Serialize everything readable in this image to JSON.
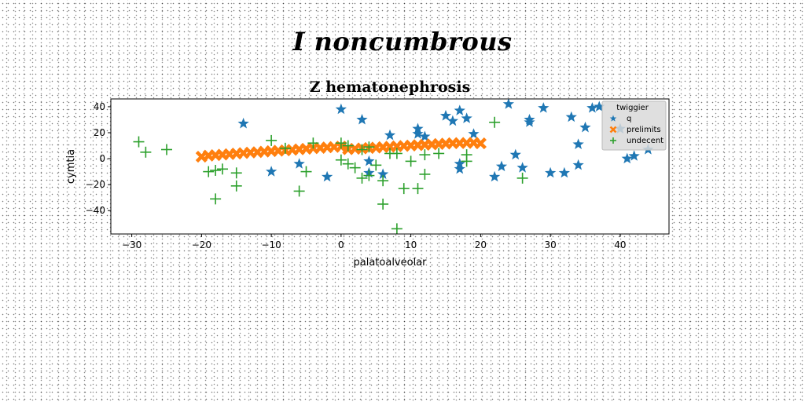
{
  "figure": {
    "suptitle": "I noncumbrous"
  },
  "chart_data": {
    "type": "scatter",
    "title": "Z hematonephrosis",
    "xlabel": "palatoalveolar",
    "ylabel": "cymtia",
    "xlim": [
      -33,
      47
    ],
    "ylim": [
      -58,
      46
    ],
    "xticks": [
      -30,
      -20,
      -10,
      0,
      10,
      20,
      30,
      40
    ],
    "yticks": [
      -40,
      -20,
      0,
      20,
      40
    ],
    "xtick_labels": [
      "−30",
      "−20",
      "−10",
      "0",
      "10",
      "20",
      "30",
      "40"
    ],
    "ytick_labels": [
      "−40",
      "−20",
      "0",
      "20",
      "40"
    ],
    "grid": false,
    "legend": {
      "title": "twiggier",
      "placement": "top-right"
    },
    "series": [
      {
        "name": "q",
        "marker": "star",
        "color": "#1f77b4",
        "points": [
          [
            -14,
            27
          ],
          [
            -10,
            -10
          ],
          [
            -6,
            -4
          ],
          [
            -2,
            -14
          ],
          [
            0,
            38
          ],
          [
            3,
            30
          ],
          [
            4,
            -2
          ],
          [
            4,
            -11
          ],
          [
            6,
            -12
          ],
          [
            7,
            18
          ],
          [
            11,
            19
          ],
          [
            11,
            23
          ],
          [
            12,
            17
          ],
          [
            15,
            33
          ],
          [
            16,
            29
          ],
          [
            17,
            37
          ],
          [
            18,
            31
          ],
          [
            17,
            -4
          ],
          [
            17,
            -8
          ],
          [
            19,
            19
          ],
          [
            22,
            -14
          ],
          [
            23,
            -6
          ],
          [
            24,
            42
          ],
          [
            25,
            3
          ],
          [
            26,
            -7
          ],
          [
            27,
            30
          ],
          [
            27,
            28
          ],
          [
            29,
            39
          ],
          [
            30,
            -11
          ],
          [
            32,
            -11
          ],
          [
            33,
            32
          ],
          [
            34,
            -5
          ],
          [
            34,
            11
          ],
          [
            35,
            24
          ],
          [
            36,
            39
          ],
          [
            37,
            40
          ],
          [
            40,
            23
          ],
          [
            41,
            0
          ],
          [
            42,
            2
          ],
          [
            44,
            7
          ]
        ]
      },
      {
        "name": "prelimits",
        "marker": "x",
        "color": "#ff7f0e",
        "points": [
          [
            -20,
            1.5
          ],
          [
            -19,
            2.3
          ],
          [
            -18,
            2.7
          ],
          [
            -17,
            3.1
          ],
          [
            -16,
            3.5
          ],
          [
            -15,
            3.9
          ],
          [
            -14,
            4.3
          ],
          [
            -13,
            4.7
          ],
          [
            -12,
            5.0
          ],
          [
            -11,
            5.4
          ],
          [
            -10,
            5.8
          ],
          [
            -9,
            6.1
          ],
          [
            -8,
            6.4
          ],
          [
            -7,
            6.8
          ],
          [
            -6,
            7.2
          ],
          [
            -5,
            7.6
          ],
          [
            -4,
            8.0
          ],
          [
            -3,
            8.3
          ],
          [
            -2,
            8.7
          ],
          [
            -1,
            9.0
          ],
          [
            0,
            9.3
          ],
          [
            1,
            7.3
          ],
          [
            2,
            7.6
          ],
          [
            3,
            7.9
          ],
          [
            4,
            8.2
          ],
          [
            5,
            8.5
          ],
          [
            6,
            8.9
          ],
          [
            7,
            9.2
          ],
          [
            8,
            9.5
          ],
          [
            9,
            9.8
          ],
          [
            10,
            10.1
          ],
          [
            11,
            10.4
          ],
          [
            12,
            10.7
          ],
          [
            13,
            11.0
          ],
          [
            14,
            11.3
          ],
          [
            15,
            11.6
          ],
          [
            16,
            11.9
          ],
          [
            17,
            12.0
          ],
          [
            18,
            12.1
          ],
          [
            19,
            12.2
          ],
          [
            20,
            11.8
          ]
        ]
      },
      {
        "name": "undecent",
        "marker": "plus",
        "color": "#2ca02c",
        "points": [
          [
            -29,
            13
          ],
          [
            -28,
            5
          ],
          [
            -25,
            7
          ],
          [
            -19,
            -10
          ],
          [
            -18,
            -9
          ],
          [
            -17,
            -8
          ],
          [
            -18,
            -31
          ],
          [
            -15,
            -11
          ],
          [
            -15,
            -21
          ],
          [
            -10,
            14
          ],
          [
            -8,
            8
          ],
          [
            -6,
            -25
          ],
          [
            -5,
            -10
          ],
          [
            -4,
            12
          ],
          [
            0,
            12
          ],
          [
            0,
            -1
          ],
          [
            1,
            -4
          ],
          [
            1,
            10
          ],
          [
            2,
            -7
          ],
          [
            3,
            -15
          ],
          [
            3,
            7
          ],
          [
            4,
            9
          ],
          [
            4,
            -13
          ],
          [
            5,
            -5
          ],
          [
            6,
            -35
          ],
          [
            6,
            -17
          ],
          [
            7,
            4
          ],
          [
            8,
            -54
          ],
          [
            8,
            4
          ],
          [
            9,
            -23
          ],
          [
            10,
            -2
          ],
          [
            11,
            -23
          ],
          [
            12,
            -12
          ],
          [
            12,
            3
          ],
          [
            14,
            4
          ],
          [
            18,
            -2
          ],
          [
            18,
            3
          ],
          [
            22,
            28
          ],
          [
            26,
            -15
          ]
        ]
      }
    ]
  }
}
